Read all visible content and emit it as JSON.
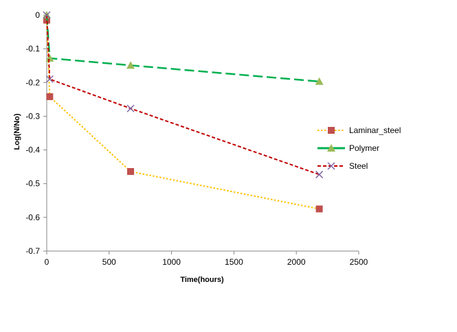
{
  "chart_data": {
    "type": "line",
    "title": "",
    "xlabel": "Time(hours)",
    "ylabel": "Log(N/No)",
    "xlim": [
      0,
      2500
    ],
    "ylim": [
      -0.7,
      0
    ],
    "x_ticks": [
      0,
      500,
      1000,
      1500,
      2000,
      2500
    ],
    "y_ticks": [
      0,
      -0.1,
      -0.2,
      -0.3,
      -0.4,
      -0.5,
      -0.6,
      -0.7
    ],
    "x_tick_labels": [
      "0",
      "500",
      "1000",
      "1500",
      "2000",
      "2500"
    ],
    "y_tick_labels": [
      "0",
      "-0.1",
      "-0.2",
      "-0.3",
      "-0.4",
      "-0.5",
      "-0.6",
      "-0.7"
    ],
    "grid": false,
    "legend_position": "right",
    "series": [
      {
        "name": "Laminar_steel",
        "color": "#FFC000",
        "marker": "square",
        "marker_color": "#C0504D",
        "line_style": "dotted",
        "x": [
          0,
          24,
          672,
          2184
        ],
        "y": [
          -0.015,
          -0.242,
          -0.464,
          -0.575
        ]
      },
      {
        "name": "Polymer",
        "color": "#00B050",
        "marker": "triangle",
        "marker_color": "#9BBB59",
        "line_style": "long-dash",
        "x": [
          0,
          24,
          672,
          2184
        ],
        "y": [
          0,
          -0.128,
          -0.149,
          -0.197
        ]
      },
      {
        "name": "Steel",
        "color": "#C00000",
        "marker": "x",
        "marker_color": "#8064A2",
        "line_style": "dash",
        "x": [
          0,
          24,
          672,
          2184
        ],
        "y": [
          0,
          -0.19,
          -0.277,
          -0.473
        ]
      }
    ]
  }
}
